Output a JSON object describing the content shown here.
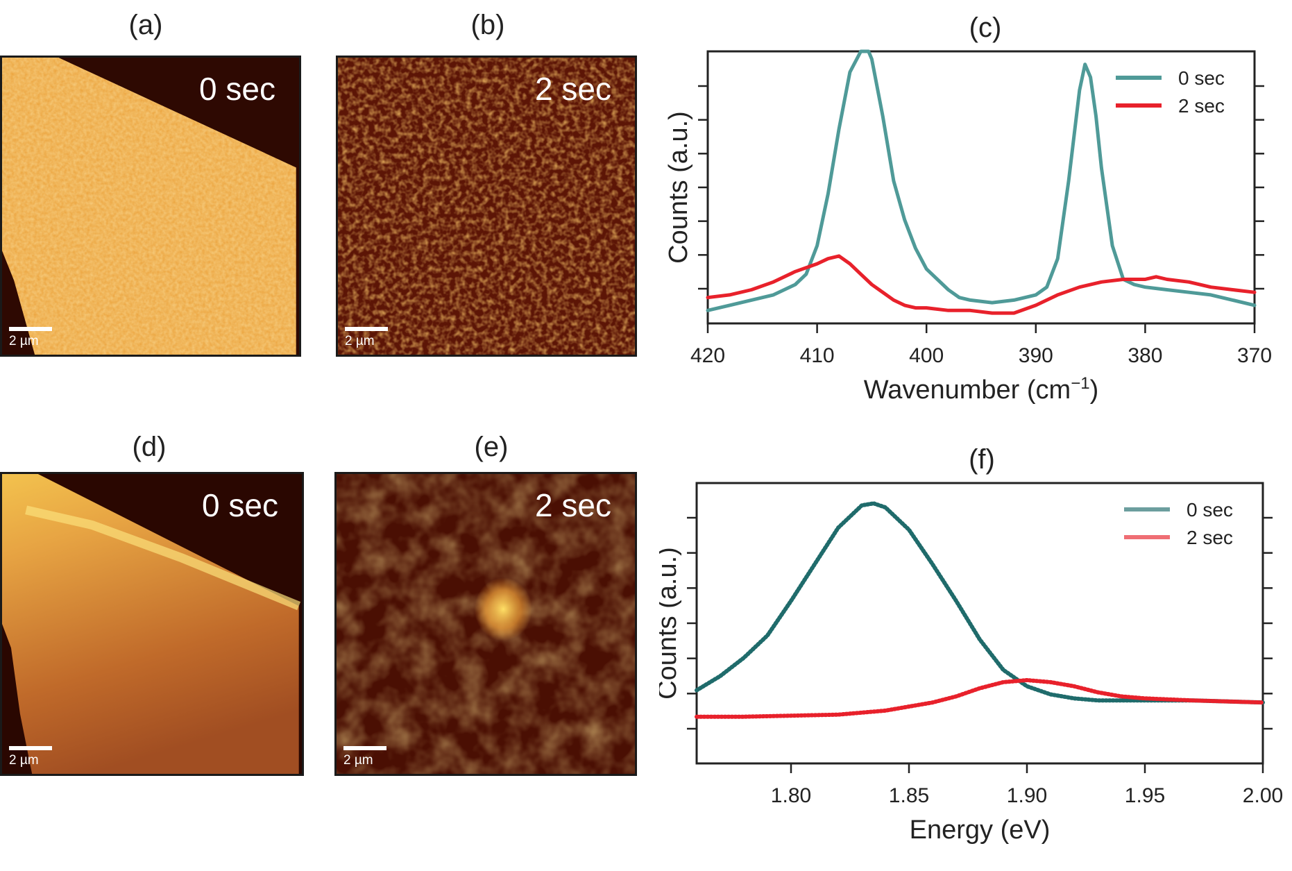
{
  "panels": {
    "a": {
      "label": "(a)",
      "time": "0 sec",
      "scale": "2 µm"
    },
    "b": {
      "label": "(b)",
      "time": "2 sec",
      "scale": "2 µm"
    },
    "c": {
      "label": "(c)"
    },
    "d": {
      "label": "(d)",
      "time": "0 sec",
      "scale": "2 µm"
    },
    "e": {
      "label": "(e)",
      "time": "2 sec",
      "scale": "2 µm"
    },
    "f": {
      "label": "(f)"
    }
  },
  "colors": {
    "teal_c": "#4f9a98",
    "teal_f": "#1f6b6b",
    "red": "#e8212b"
  },
  "chart_data": [
    {
      "type": "line",
      "panel": "c",
      "xlabel": "Wavenumber (cm",
      "xlabel_sup": "−1",
      "xlabel_close": ")",
      "ylabel": "Counts (a.u.)",
      "xlim": [
        420,
        370
      ],
      "x_reversed": true,
      "ylim": [
        -0.05,
        1.0
      ],
      "xticks": [
        "420",
        "410",
        "400",
        "390",
        "380",
        "370"
      ],
      "xtick_values": [
        420,
        410,
        400,
        390,
        380,
        370
      ],
      "legend_position": "top-right",
      "series": [
        {
          "name": "0 sec",
          "color": "#4f9a98",
          "x": [
            420,
            418,
            416,
            414,
            412,
            411,
            410,
            409,
            408,
            407,
            406,
            405.3,
            405,
            404,
            403,
            402,
            401,
            400,
            398,
            397,
            396,
            394,
            392,
            390,
            389,
            388,
            387,
            386,
            385.5,
            385,
            384.5,
            384,
            383,
            382,
            381,
            380,
            378,
            376,
            374,
            372,
            370
          ],
          "y": [
            0.0,
            0.02,
            0.04,
            0.06,
            0.1,
            0.14,
            0.25,
            0.45,
            0.7,
            0.92,
            1.0,
            1.0,
            0.97,
            0.75,
            0.5,
            0.35,
            0.24,
            0.16,
            0.08,
            0.05,
            0.04,
            0.03,
            0.04,
            0.06,
            0.09,
            0.2,
            0.5,
            0.85,
            0.95,
            0.9,
            0.75,
            0.55,
            0.25,
            0.12,
            0.1,
            0.09,
            0.08,
            0.07,
            0.06,
            0.04,
            0.02
          ]
        },
        {
          "name": "2 sec",
          "color": "#e8212b",
          "x": [
            420,
            418,
            416,
            414,
            412,
            410,
            409,
            408,
            407,
            406,
            405,
            404,
            403,
            402,
            401,
            400,
            398,
            396,
            394,
            392,
            390,
            388,
            386,
            384,
            382,
            380,
            379,
            378,
            376,
            374,
            372,
            370
          ],
          "y": [
            0.05,
            0.06,
            0.08,
            0.11,
            0.15,
            0.18,
            0.2,
            0.21,
            0.18,
            0.14,
            0.1,
            0.07,
            0.04,
            0.02,
            0.01,
            0.01,
            0.0,
            0.0,
            -0.01,
            -0.01,
            0.02,
            0.06,
            0.09,
            0.11,
            0.12,
            0.12,
            0.13,
            0.12,
            0.11,
            0.09,
            0.08,
            0.07
          ]
        }
      ]
    },
    {
      "type": "scatter",
      "panel": "f",
      "xlabel": "Energy (eV)",
      "ylabel": "Counts (a.u.)",
      "xlim": [
        1.76,
        2.0
      ],
      "ylim": [
        -0.28,
        1.1
      ],
      "xticks": [
        "1.80",
        "1.85",
        "1.90",
        "1.95",
        "2.00"
      ],
      "xtick_values": [
        1.8,
        1.85,
        1.9,
        1.95,
        2.0
      ],
      "legend_position": "top-right",
      "series": [
        {
          "name": "0 sec",
          "color": "#1f6b6b",
          "x": [
            1.76,
            1.77,
            1.78,
            1.79,
            1.8,
            1.81,
            1.82,
            1.83,
            1.835,
            1.84,
            1.85,
            1.86,
            1.87,
            1.88,
            1.89,
            1.9,
            1.91,
            1.92,
            1.93,
            1.95,
            1.97,
            2.0
          ],
          "y": [
            0.08,
            0.15,
            0.24,
            0.35,
            0.52,
            0.7,
            0.88,
            0.99,
            1.0,
            0.98,
            0.87,
            0.7,
            0.52,
            0.33,
            0.18,
            0.1,
            0.06,
            0.04,
            0.03,
            0.03,
            0.03,
            0.02
          ]
        },
        {
          "name": "2 sec",
          "color": "#e8212b",
          "x": [
            1.76,
            1.78,
            1.8,
            1.82,
            1.84,
            1.86,
            1.87,
            1.88,
            1.89,
            1.9,
            1.91,
            1.92,
            1.93,
            1.94,
            1.95,
            1.97,
            2.0
          ],
          "y": [
            -0.05,
            -0.05,
            -0.045,
            -0.04,
            -0.02,
            0.02,
            0.05,
            0.09,
            0.12,
            0.13,
            0.12,
            0.1,
            0.07,
            0.05,
            0.04,
            0.03,
            0.02
          ]
        }
      ]
    }
  ]
}
